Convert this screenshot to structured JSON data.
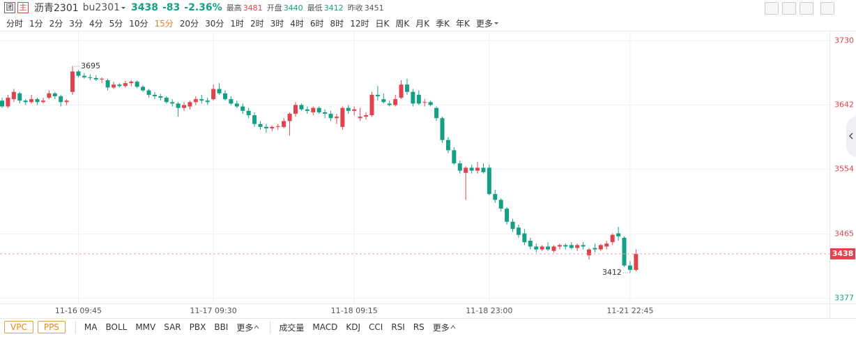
{
  "header": {
    "icon1": "团",
    "icon2": "主",
    "name": "沥青2301",
    "code": "bu2301",
    "last": 3438,
    "change": -83,
    "change_pct": "-2.36%",
    "high_label": "最高",
    "high": 3481,
    "open_label": "开盘",
    "open": 3440,
    "low_label": "最低",
    "low": 3412,
    "prev_label": "昨收",
    "prev_close": 3451
  },
  "periods": {
    "items": [
      "分时",
      "1分",
      "2分",
      "3分",
      "4分",
      "5分",
      "10分",
      "15分",
      "20分",
      "30分",
      "1时",
      "2时",
      "3时",
      "4时",
      "6时",
      "8时",
      "12时",
      "日K",
      "周K",
      "月K",
      "季K",
      "年K",
      "更多"
    ],
    "selected": 7
  },
  "bottom": {
    "overlays": [
      "VPC",
      "PPS"
    ],
    "main": [
      "MA",
      "BOLL",
      "MMV",
      "SAR",
      "PBX",
      "BBI",
      "更多"
    ],
    "sub": [
      "成交量",
      "MACD",
      "KDJ",
      "CCI",
      "RSI",
      "RS",
      "更多"
    ]
  },
  "chart_data": {
    "type": "candlestick",
    "up_color": "#e0434d",
    "down_color": "#15a086",
    "grid": true,
    "ylim": [
      3370,
      3741
    ],
    "yticks": [
      3730,
      3642,
      3554,
      3465,
      3377
    ],
    "categories": [
      null,
      null,
      null,
      null,
      null,
      null,
      null,
      null,
      null,
      null,
      null,
      null,
      null,
      "11-16 09:45",
      null,
      null,
      null,
      null,
      null,
      null,
      null,
      null,
      null,
      null,
      null,
      null,
      null,
      null,
      null,
      null,
      null,
      null,
      null,
      null,
      null,
      null,
      "11-17 09:30",
      null,
      null,
      null,
      null,
      null,
      null,
      null,
      null,
      null,
      null,
      null,
      null,
      null,
      null,
      null,
      null,
      null,
      null,
      null,
      null,
      null,
      null,
      null,
      "11-18 09:15",
      null,
      null,
      null,
      null,
      null,
      null,
      null,
      null,
      null,
      null,
      null,
      null,
      null,
      null,
      null,
      null,
      null,
      null,
      null,
      null,
      null,
      null,
      "11-18 23:00",
      null,
      null,
      null,
      null,
      null,
      null,
      null,
      null,
      null,
      null,
      null,
      null,
      null,
      null,
      null,
      null,
      null,
      null,
      null,
      null,
      null,
      null,
      null,
      "11-21 22:45",
      null
    ],
    "open": [
      3648,
      3640,
      3650,
      3658,
      3648,
      3646,
      3650,
      3646,
      3652,
      3658,
      3654,
      3646,
      3660,
      3688,
      3682,
      3680,
      3679,
      3677,
      3676,
      3666,
      3670,
      3668,
      3672,
      3674,
      3667,
      3662,
      3656,
      3654,
      3652,
      3646,
      3644,
      3638,
      3640,
      3646,
      3650,
      3648,
      3650,
      3664,
      3658,
      3650,
      3644,
      3640,
      3634,
      3628,
      3616,
      3612,
      3610,
      3612,
      3612,
      3620,
      3630,
      3642,
      3636,
      3632,
      3638,
      3632,
      3630,
      3624,
      3612,
      3638,
      3634,
      3624,
      3626,
      3628,
      3656,
      3650,
      3644,
      3642,
      3652,
      3670,
      3660,
      3656,
      3646,
      3646,
      3638,
      3624,
      3594,
      3580,
      3562,
      3549,
      3556,
      3552,
      3556,
      3556,
      3520,
      3512,
      3500,
      3482,
      3474,
      3466,
      3456,
      3448,
      3444,
      3448,
      3442,
      3448,
      3450,
      3450,
      3446,
      3450,
      3436,
      3446,
      3444,
      3448,
      3454,
      3466,
      3460,
      3422,
      3416
    ],
    "high": [
      3652,
      3656,
      3664,
      3660,
      3650,
      3656,
      3652,
      3652,
      3662,
      3660,
      3656,
      3650,
      3695,
      3690,
      3686,
      3684,
      3683,
      3680,
      3678,
      3674,
      3672,
      3675,
      3676,
      3676,
      3669,
      3664,
      3660,
      3657,
      3654,
      3650,
      3646,
      3646,
      3648,
      3654,
      3656,
      3652,
      3670,
      3672,
      3662,
      3654,
      3648,
      3644,
      3638,
      3632,
      3620,
      3616,
      3614,
      3616,
      3624,
      3632,
      3646,
      3644,
      3640,
      3640,
      3640,
      3636,
      3634,
      3630,
      3640,
      3642,
      3640,
      3638,
      3632,
      3660,
      3668,
      3658,
      3648,
      3656,
      3676,
      3678,
      3664,
      3662,
      3650,
      3648,
      3640,
      3626,
      3598,
      3584,
      3566,
      3558,
      3560,
      3564,
      3562,
      3560,
      3526,
      3514,
      3502,
      3486,
      3478,
      3472,
      3460,
      3452,
      3450,
      3454,
      3450,
      3452,
      3452,
      3454,
      3452,
      3454,
      3446,
      3452,
      3452,
      3456,
      3466,
      3475,
      3462,
      3428,
      3444
    ],
    "low": [
      3638,
      3638,
      3646,
      3644,
      3642,
      3644,
      3642,
      3644,
      3650,
      3650,
      3640,
      3642,
      3656,
      3680,
      3678,
      3676,
      3675,
      3672,
      3662,
      3664,
      3666,
      3666,
      3668,
      3665,
      3660,
      3652,
      3650,
      3648,
      3644,
      3640,
      3626,
      3634,
      3636,
      3642,
      3644,
      3642,
      3648,
      3656,
      3648,
      3642,
      3638,
      3630,
      3624,
      3612,
      3608,
      3604,
      3606,
      3608,
      3610,
      3600,
      3626,
      3634,
      3630,
      3628,
      3630,
      3624,
      3620,
      3616,
      3608,
      3630,
      3628,
      3620,
      3622,
      3626,
      3648,
      3644,
      3640,
      3640,
      3650,
      3656,
      3640,
      3642,
      3640,
      3640,
      3620,
      3590,
      3576,
      3560,
      3548,
      3512,
      3548,
      3548,
      3548,
      3518,
      3508,
      3496,
      3478,
      3468,
      3460,
      3450,
      3444,
      3440,
      3442,
      3442,
      3440,
      3444,
      3444,
      3444,
      3442,
      3444,
      3430,
      3440,
      3442,
      3444,
      3450,
      3456,
      3420,
      3412,
      3414
    ],
    "close": [
      3640,
      3652,
      3660,
      3648,
      3646,
      3650,
      3646,
      3648,
      3658,
      3654,
      3646,
      3648,
      3688,
      3682,
      3680,
      3679,
      3677,
      3678,
      3666,
      3670,
      3668,
      3672,
      3674,
      3667,
      3662,
      3656,
      3654,
      3652,
      3646,
      3644,
      3638,
      3642,
      3646,
      3650,
      3648,
      3646,
      3664,
      3658,
      3650,
      3644,
      3640,
      3634,
      3628,
      3616,
      3612,
      3610,
      3612,
      3613,
      3620,
      3630,
      3642,
      3636,
      3634,
      3638,
      3632,
      3630,
      3624,
      3626,
      3638,
      3634,
      3636,
      3626,
      3628,
      3656,
      3654,
      3646,
      3642,
      3650,
      3670,
      3660,
      3644,
      3644,
      3646,
      3642,
      3624,
      3594,
      3580,
      3562,
      3552,
      3556,
      3552,
      3556,
      3550,
      3520,
      3512,
      3500,
      3482,
      3472,
      3464,
      3454,
      3448,
      3444,
      3448,
      3444,
      3448,
      3450,
      3448,
      3446,
      3450,
      3448,
      3444,
      3444,
      3450,
      3452,
      3464,
      3462,
      3422,
      3416,
      3438
    ]
  }
}
